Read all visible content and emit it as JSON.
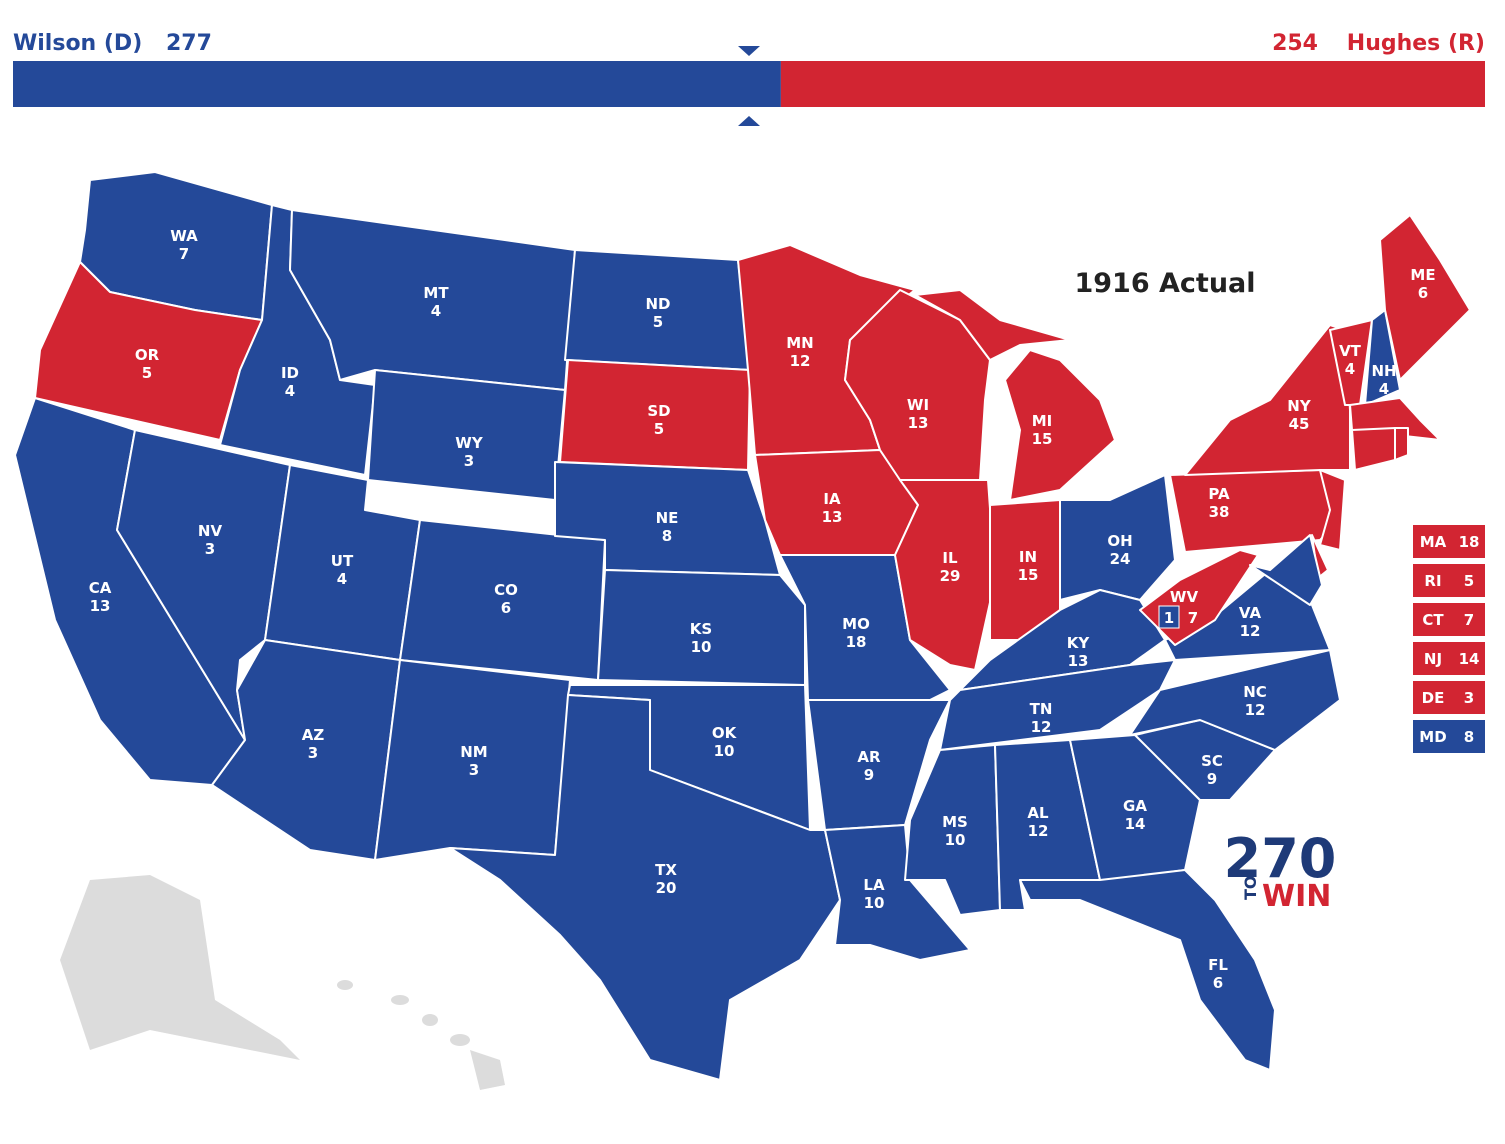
{
  "header": {
    "dem": {
      "name": "Wilson (D)",
      "votes": 277,
      "color": "#244999"
    },
    "rep": {
      "name": "Hughes (R)",
      "votes": 254,
      "color": "#d22532"
    }
  },
  "title": "1916 Actual",
  "states": [
    {
      "abbr": "WA",
      "ev": 7,
      "color": "#244999"
    },
    {
      "abbr": "OR",
      "ev": 5,
      "color": "#d22532"
    },
    {
      "abbr": "CA",
      "ev": 13,
      "color": "#244999"
    },
    {
      "abbr": "ID",
      "ev": 4,
      "color": "#244999"
    },
    {
      "abbr": "NV",
      "ev": 3,
      "color": "#244999"
    },
    {
      "abbr": "MT",
      "ev": 4,
      "color": "#244999"
    },
    {
      "abbr": "WY",
      "ev": 3,
      "color": "#244999"
    },
    {
      "abbr": "UT",
      "ev": 4,
      "color": "#244999"
    },
    {
      "abbr": "CO",
      "ev": 6,
      "color": "#244999"
    },
    {
      "abbr": "AZ",
      "ev": 3,
      "color": "#244999"
    },
    {
      "abbr": "NM",
      "ev": 3,
      "color": "#244999"
    },
    {
      "abbr": "ND",
      "ev": 5,
      "color": "#244999"
    },
    {
      "abbr": "SD",
      "ev": 5,
      "color": "#d22532"
    },
    {
      "abbr": "NE",
      "ev": 8,
      "color": "#244999"
    },
    {
      "abbr": "KS",
      "ev": 10,
      "color": "#244999"
    },
    {
      "abbr": "OK",
      "ev": 10,
      "color": "#244999"
    },
    {
      "abbr": "TX",
      "ev": 20,
      "color": "#244999"
    },
    {
      "abbr": "MN",
      "ev": 12,
      "color": "#d22532"
    },
    {
      "abbr": "IA",
      "ev": 13,
      "color": "#d22532"
    },
    {
      "abbr": "MO",
      "ev": 18,
      "color": "#244999"
    },
    {
      "abbr": "AR",
      "ev": 9,
      "color": "#244999"
    },
    {
      "abbr": "LA",
      "ev": 10,
      "color": "#244999"
    },
    {
      "abbr": "WI",
      "ev": 13,
      "color": "#d22532"
    },
    {
      "abbr": "IL",
      "ev": 29,
      "color": "#d22532"
    },
    {
      "abbr": "MI",
      "ev": 15,
      "color": "#d22532"
    },
    {
      "abbr": "IN",
      "ev": 15,
      "color": "#d22532"
    },
    {
      "abbr": "OH",
      "ev": 24,
      "color": "#244999"
    },
    {
      "abbr": "KY",
      "ev": 13,
      "color": "#244999"
    },
    {
      "abbr": "TN",
      "ev": 12,
      "color": "#244999"
    },
    {
      "abbr": "MS",
      "ev": 10,
      "color": "#244999"
    },
    {
      "abbr": "AL",
      "ev": 12,
      "color": "#244999"
    },
    {
      "abbr": "GA",
      "ev": 14,
      "color": "#244999"
    },
    {
      "abbr": "FL",
      "ev": 6,
      "color": "#244999"
    },
    {
      "abbr": "SC",
      "ev": 9,
      "color": "#244999"
    },
    {
      "abbr": "NC",
      "ev": 12,
      "color": "#244999"
    },
    {
      "abbr": "VA",
      "ev": 12,
      "color": "#244999"
    },
    {
      "abbr": "WV",
      "ev": 7,
      "color": "#d22532",
      "split": {
        "ev": 1,
        "color": "#244999"
      }
    },
    {
      "abbr": "PA",
      "ev": 38,
      "color": "#d22532"
    },
    {
      "abbr": "NY",
      "ev": 45,
      "color": "#d22532"
    },
    {
      "abbr": "VT",
      "ev": 4,
      "color": "#d22532"
    },
    {
      "abbr": "NH",
      "ev": 4,
      "color": "#244999"
    },
    {
      "abbr": "ME",
      "ev": 6,
      "color": "#d22532"
    },
    {
      "abbr": "MA",
      "ev": 18,
      "color": "#d22532",
      "callout": true
    },
    {
      "abbr": "RI",
      "ev": 5,
      "color": "#d22532",
      "callout": true
    },
    {
      "abbr": "CT",
      "ev": 7,
      "color": "#d22532",
      "callout": true
    },
    {
      "abbr": "NJ",
      "ev": 14,
      "color": "#d22532",
      "callout": true
    },
    {
      "abbr": "DE",
      "ev": 3,
      "color": "#d22532",
      "callout": true
    },
    {
      "abbr": "MD",
      "ev": 8,
      "color": "#244999",
      "callout": true
    }
  ],
  "logo": {
    "number": "270",
    "to": "TO",
    "win": "WIN"
  }
}
